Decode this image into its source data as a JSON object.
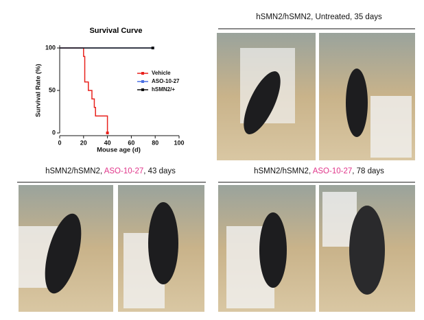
{
  "chart_data": {
    "type": "line",
    "step": "post",
    "title": "Survival Curve",
    "x_label": "Mouse age (d)",
    "y_label": "Survival Rate (%)",
    "xlim": [
      0,
      100
    ],
    "xticks": [
      0,
      20,
      40,
      60,
      80,
      100
    ],
    "ylim": [
      0,
      100
    ],
    "yticks": [
      0,
      50,
      100
    ],
    "legend": "right",
    "series": [
      {
        "name": "Vehicle",
        "color": "#e8211c",
        "x": [
          0,
          20,
          21,
          24,
          27,
          29,
          30,
          40
        ],
        "values": [
          100,
          90,
          60,
          50,
          40,
          30,
          20,
          0
        ]
      },
      {
        "name": "ASO-10-27",
        "color": "#4a6fe3",
        "x": [
          0,
          78
        ],
        "values": [
          100,
          100
        ]
      },
      {
        "name": "hSMN2/+",
        "color": "#111111",
        "x": [
          0,
          78
        ],
        "values": [
          100,
          100
        ]
      }
    ]
  },
  "panels": [
    {
      "caption": [
        "hSMN2/hSMN2, Untreated, 35 days"
      ]
    },
    {
      "caption": [
        "hSMN2/hSMN2, ",
        "ASO-10-27",
        ", 43 days"
      ]
    },
    {
      "caption": [
        "hSMN2/hSMN2, ",
        "ASO-10-27",
        ", 78 days"
      ]
    }
  ]
}
